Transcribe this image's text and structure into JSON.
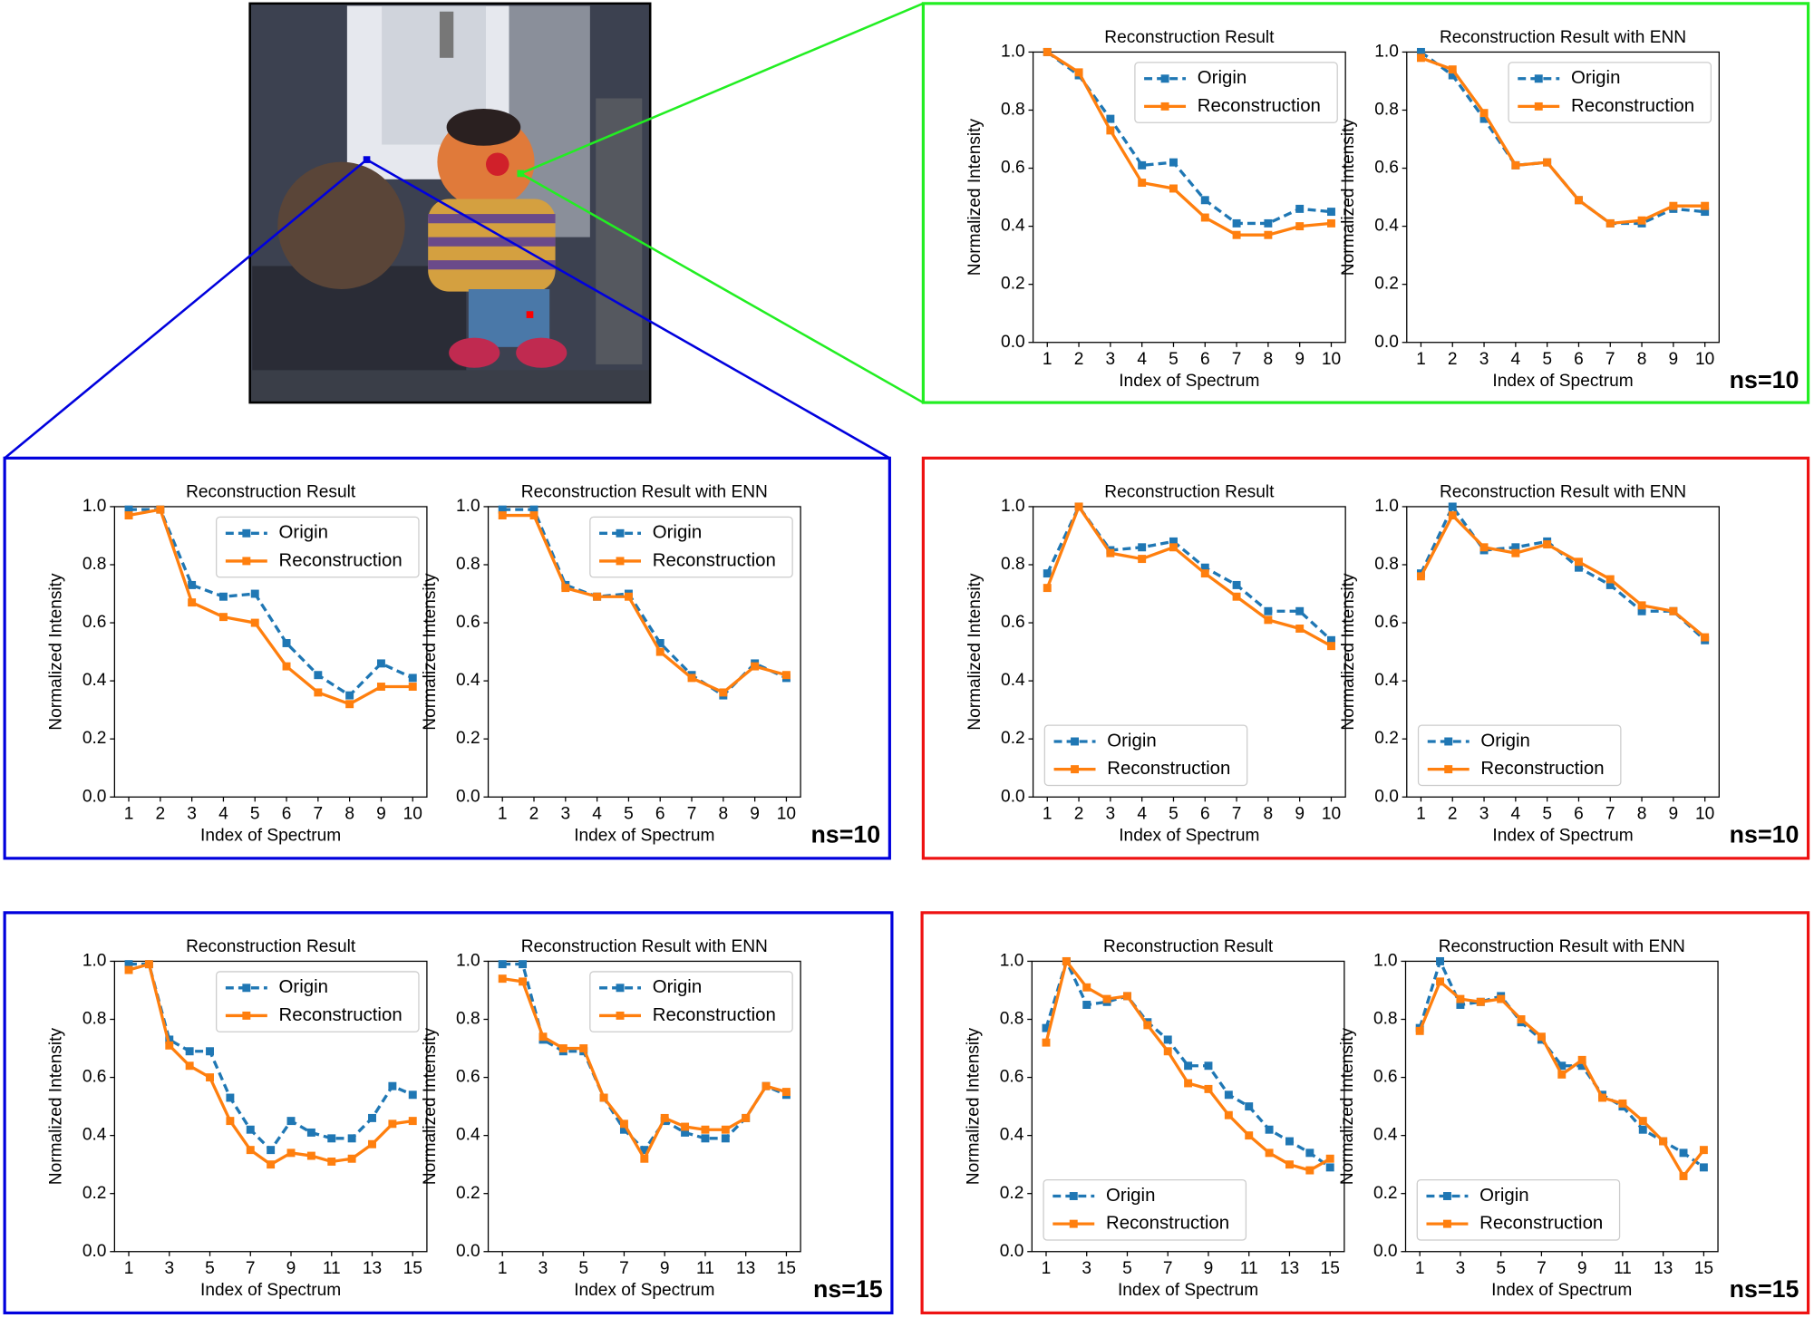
{
  "chart_data": [
    {
      "type": "line",
      "title": "Reconstruction Result",
      "x_label": "Index of Spectrum",
      "y_label": "Normalized Intensity",
      "x": [
        1,
        2,
        3,
        4,
        5,
        6,
        7,
        8,
        9,
        10
      ],
      "xlim": [
        0.55,
        10.45
      ],
      "xticks": [
        1,
        2,
        3,
        4,
        5,
        6,
        7,
        8,
        9,
        10
      ],
      "ylim": [
        0,
        1
      ],
      "yticks": [
        {
          "value": 0,
          "label": "0.0"
        },
        0.2,
        0.4,
        0.6,
        0.8,
        {
          "value": 1,
          "label": "1.0"
        }
      ],
      "legend": "upper right",
      "series": [
        {
          "name": "Origin",
          "color": "#1f77b4",
          "linestyle": "dashed",
          "values": [
            1.0,
            0.92,
            0.77,
            0.61,
            0.62,
            0.49,
            0.41,
            0.41,
            0.46,
            0.45
          ]
        },
        {
          "name": "Reconstruction",
          "color": "#ff7f0e",
          "linestyle": "solid",
          "values": [
            1.0,
            0.93,
            0.73,
            0.55,
            0.53,
            0.43,
            0.37,
            0.37,
            0.4,
            0.41
          ]
        }
      ]
    },
    {
      "type": "line",
      "title": "Reconstruction Result with ENN",
      "x_label": "Index of Spectrum",
      "y_label": "Normalized Intensity",
      "x": [
        1,
        2,
        3,
        4,
        5,
        6,
        7,
        8,
        9,
        10
      ],
      "xlim": [
        0.55,
        10.45
      ],
      "xticks": [
        1,
        2,
        3,
        4,
        5,
        6,
        7,
        8,
        9,
        10
      ],
      "ylim": [
        0,
        1
      ],
      "yticks": [
        {
          "value": 0,
          "label": "0.0"
        },
        0.2,
        0.4,
        0.6,
        0.8,
        {
          "value": 1,
          "label": "1.0"
        }
      ],
      "legend": "upper right",
      "annotation": "ns=10",
      "series": [
        {
          "name": "Origin",
          "color": "#1f77b4",
          "linestyle": "dashed",
          "values": [
            1.0,
            0.92,
            0.77,
            0.61,
            0.62,
            0.49,
            0.41,
            0.41,
            0.46,
            0.45
          ]
        },
        {
          "name": "Reconstruction",
          "color": "#ff7f0e",
          "linestyle": "solid",
          "values": [
            0.98,
            0.94,
            0.79,
            0.61,
            0.62,
            0.49,
            0.41,
            0.42,
            0.47,
            0.47
          ]
        }
      ]
    },
    {
      "type": "line",
      "title": "Reconstruction Result",
      "x_label": "Index of Spectrum",
      "y_label": "Normalized Intensity",
      "x": [
        1,
        2,
        3,
        4,
        5,
        6,
        7,
        8,
        9,
        10
      ],
      "xlim": [
        0.55,
        10.45
      ],
      "xticks": [
        1,
        2,
        3,
        4,
        5,
        6,
        7,
        8,
        9,
        10
      ],
      "ylim": [
        0,
        1
      ],
      "yticks": [
        {
          "value": 0,
          "label": "0.0"
        },
        0.2,
        0.4,
        0.6,
        0.8,
        {
          "value": 1,
          "label": "1.0"
        }
      ],
      "legend": "upper right",
      "series": [
        {
          "name": "Origin",
          "color": "#1f77b4",
          "linestyle": "dashed",
          "values": [
            0.99,
            0.99,
            0.73,
            0.69,
            0.7,
            0.53,
            0.42,
            0.35,
            0.46,
            0.41
          ]
        },
        {
          "name": "Reconstruction",
          "color": "#ff7f0e",
          "linestyle": "solid",
          "values": [
            0.97,
            0.99,
            0.67,
            0.62,
            0.6,
            0.45,
            0.36,
            0.32,
            0.38,
            0.38
          ]
        }
      ]
    },
    {
      "type": "line",
      "title": "Reconstruction Result with ENN",
      "x_label": "Index of Spectrum",
      "y_label": "Normalized Intensity",
      "x": [
        1,
        2,
        3,
        4,
        5,
        6,
        7,
        8,
        9,
        10
      ],
      "xlim": [
        0.55,
        10.45
      ],
      "xticks": [
        1,
        2,
        3,
        4,
        5,
        6,
        7,
        8,
        9,
        10
      ],
      "ylim": [
        0,
        1
      ],
      "yticks": [
        {
          "value": 0,
          "label": "0.0"
        },
        0.2,
        0.4,
        0.6,
        0.8,
        {
          "value": 1,
          "label": "1.0"
        }
      ],
      "legend": "upper right",
      "annotation": "ns=10",
      "series": [
        {
          "name": "Origin",
          "color": "#1f77b4",
          "linestyle": "dashed",
          "values": [
            0.99,
            0.99,
            0.73,
            0.69,
            0.7,
            0.53,
            0.42,
            0.35,
            0.46,
            0.41
          ]
        },
        {
          "name": "Reconstruction",
          "color": "#ff7f0e",
          "linestyle": "solid",
          "values": [
            0.97,
            0.97,
            0.72,
            0.69,
            0.69,
            0.5,
            0.41,
            0.36,
            0.45,
            0.42
          ]
        }
      ]
    },
    {
      "type": "line",
      "title": "Reconstruction Result",
      "x_label": "Index of Spectrum",
      "y_label": "Normalized Intensity",
      "x": [
        1,
        2,
        3,
        4,
        5,
        6,
        7,
        8,
        9,
        10
      ],
      "xlim": [
        0.55,
        10.45
      ],
      "xticks": [
        1,
        2,
        3,
        4,
        5,
        6,
        7,
        8,
        9,
        10
      ],
      "ylim": [
        0,
        1
      ],
      "yticks": [
        {
          "value": 0,
          "label": "0.0"
        },
        0.2,
        0.4,
        0.6,
        0.8,
        {
          "value": 1,
          "label": "1.0"
        }
      ],
      "legend": "lower left",
      "series": [
        {
          "name": "Origin",
          "color": "#1f77b4",
          "linestyle": "dashed",
          "values": [
            0.77,
            1.0,
            0.85,
            0.86,
            0.88,
            0.79,
            0.73,
            0.64,
            0.64,
            0.54
          ]
        },
        {
          "name": "Reconstruction",
          "color": "#ff7f0e",
          "linestyle": "solid",
          "values": [
            0.72,
            1.0,
            0.84,
            0.82,
            0.86,
            0.77,
            0.69,
            0.61,
            0.58,
            0.52
          ]
        }
      ]
    },
    {
      "type": "line",
      "title": "Reconstruction Result with ENN",
      "x_label": "Index of Spectrum",
      "y_label": "Normalized Intensity",
      "x": [
        1,
        2,
        3,
        4,
        5,
        6,
        7,
        8,
        9,
        10
      ],
      "xlim": [
        0.55,
        10.45
      ],
      "xticks": [
        1,
        2,
        3,
        4,
        5,
        6,
        7,
        8,
        9,
        10
      ],
      "ylim": [
        0,
        1
      ],
      "yticks": [
        {
          "value": 0,
          "label": "0.0"
        },
        0.2,
        0.4,
        0.6,
        0.8,
        {
          "value": 1,
          "label": "1.0"
        }
      ],
      "legend": "lower left",
      "annotation": "ns=10",
      "series": [
        {
          "name": "Origin",
          "color": "#1f77b4",
          "linestyle": "dashed",
          "values": [
            0.77,
            1.0,
            0.85,
            0.86,
            0.88,
            0.79,
            0.73,
            0.64,
            0.64,
            0.54
          ]
        },
        {
          "name": "Reconstruction",
          "color": "#ff7f0e",
          "linestyle": "solid",
          "values": [
            0.76,
            0.97,
            0.86,
            0.84,
            0.87,
            0.81,
            0.75,
            0.66,
            0.64,
            0.55
          ]
        }
      ]
    },
    {
      "type": "line",
      "title": "Reconstruction Result",
      "x_label": "Index of Spectrum",
      "y_label": "Normalized Intensity",
      "x": [
        1,
        2,
        3,
        4,
        5,
        6,
        7,
        8,
        9,
        10,
        11,
        12,
        13,
        14,
        15
      ],
      "xlim": [
        0.3,
        15.7
      ],
      "xticks": [
        1,
        3,
        5,
        7,
        9,
        11,
        13,
        15
      ],
      "ylim": [
        0,
        1
      ],
      "yticks": [
        {
          "value": 0,
          "label": "0.0"
        },
        0.2,
        0.4,
        0.6,
        0.8,
        {
          "value": 1,
          "label": "1.0"
        }
      ],
      "legend": "upper right",
      "series": [
        {
          "name": "Origin",
          "color": "#1f77b4",
          "linestyle": "dashed",
          "values": [
            0.99,
            0.99,
            0.73,
            0.69,
            0.69,
            0.53,
            0.42,
            0.35,
            0.45,
            0.41,
            0.39,
            0.39,
            0.46,
            0.57,
            0.54
          ]
        },
        {
          "name": "Reconstruction",
          "color": "#ff7f0e",
          "linestyle": "solid",
          "values": [
            0.97,
            0.99,
            0.71,
            0.64,
            0.6,
            0.45,
            0.35,
            0.3,
            0.34,
            0.33,
            0.31,
            0.32,
            0.37,
            0.44,
            0.45
          ]
        }
      ]
    },
    {
      "type": "line",
      "title": "Reconstruction Result with ENN",
      "x_label": "Index of Spectrum",
      "y_label": "Normalized Intensity",
      "x": [
        1,
        2,
        3,
        4,
        5,
        6,
        7,
        8,
        9,
        10,
        11,
        12,
        13,
        14,
        15
      ],
      "xlim": [
        0.3,
        15.7
      ],
      "xticks": [
        1,
        3,
        5,
        7,
        9,
        11,
        13,
        15
      ],
      "ylim": [
        0,
        1
      ],
      "yticks": [
        {
          "value": 0,
          "label": "0.0"
        },
        0.2,
        0.4,
        0.6,
        0.8,
        {
          "value": 1,
          "label": "1.0"
        }
      ],
      "legend": "upper right",
      "annotation": "ns=15",
      "series": [
        {
          "name": "Origin",
          "color": "#1f77b4",
          "linestyle": "dashed",
          "values": [
            0.99,
            0.99,
            0.73,
            0.69,
            0.69,
            0.53,
            0.42,
            0.35,
            0.45,
            0.41,
            0.39,
            0.39,
            0.46,
            0.57,
            0.54
          ]
        },
        {
          "name": "Reconstruction",
          "color": "#ff7f0e",
          "linestyle": "solid",
          "values": [
            0.94,
            0.93,
            0.74,
            0.7,
            0.7,
            0.53,
            0.44,
            0.32,
            0.46,
            0.43,
            0.42,
            0.42,
            0.46,
            0.57,
            0.55
          ]
        }
      ]
    },
    {
      "type": "line",
      "title": "Reconstruction Result",
      "x_label": "Index of Spectrum",
      "y_label": "Normalized Intensity",
      "x": [
        1,
        2,
        3,
        4,
        5,
        6,
        7,
        8,
        9,
        10,
        11,
        12,
        13,
        14,
        15
      ],
      "xlim": [
        0.3,
        15.7
      ],
      "xticks": [
        1,
        3,
        5,
        7,
        9,
        11,
        13,
        15
      ],
      "ylim": [
        0,
        1
      ],
      "yticks": [
        {
          "value": 0,
          "label": "0.0"
        },
        0.2,
        0.4,
        0.6,
        0.8,
        {
          "value": 1,
          "label": "1.0"
        }
      ],
      "legend": "lower left",
      "series": [
        {
          "name": "Origin",
          "color": "#1f77b4",
          "linestyle": "dashed",
          "values": [
            0.77,
            1.0,
            0.85,
            0.86,
            0.88,
            0.79,
            0.73,
            0.64,
            0.64,
            0.54,
            0.5,
            0.42,
            0.38,
            0.34,
            0.29
          ]
        },
        {
          "name": "Reconstruction",
          "color": "#ff7f0e",
          "linestyle": "solid",
          "values": [
            0.72,
            1.0,
            0.91,
            0.87,
            0.88,
            0.78,
            0.69,
            0.58,
            0.56,
            0.47,
            0.4,
            0.34,
            0.3,
            0.28,
            0.32
          ]
        }
      ]
    },
    {
      "type": "line",
      "title": "Reconstruction Result with ENN",
      "x_label": "Index of Spectrum",
      "y_label": "Normalized Intensity",
      "x": [
        1,
        2,
        3,
        4,
        5,
        6,
        7,
        8,
        9,
        10,
        11,
        12,
        13,
        14,
        15
      ],
      "xlim": [
        0.3,
        15.7
      ],
      "xticks": [
        1,
        3,
        5,
        7,
        9,
        11,
        13,
        15
      ],
      "ylim": [
        0,
        1
      ],
      "yticks": [
        {
          "value": 0,
          "label": "0.0"
        },
        0.2,
        0.4,
        0.6,
        0.8,
        {
          "value": 1,
          "label": "1.0"
        }
      ],
      "legend": "lower left",
      "annotation": "ns=15",
      "series": [
        {
          "name": "Origin",
          "color": "#1f77b4",
          "linestyle": "dashed",
          "values": [
            0.77,
            1.0,
            0.85,
            0.86,
            0.88,
            0.79,
            0.73,
            0.64,
            0.64,
            0.54,
            0.5,
            0.42,
            0.38,
            0.34,
            0.29
          ]
        },
        {
          "name": "Reconstruction",
          "color": "#ff7f0e",
          "linestyle": "solid",
          "values": [
            0.76,
            0.93,
            0.87,
            0.86,
            0.87,
            0.8,
            0.74,
            0.61,
            0.66,
            0.53,
            0.51,
            0.45,
            0.38,
            0.26,
            0.35
          ]
        }
      ]
    }
  ]
}
